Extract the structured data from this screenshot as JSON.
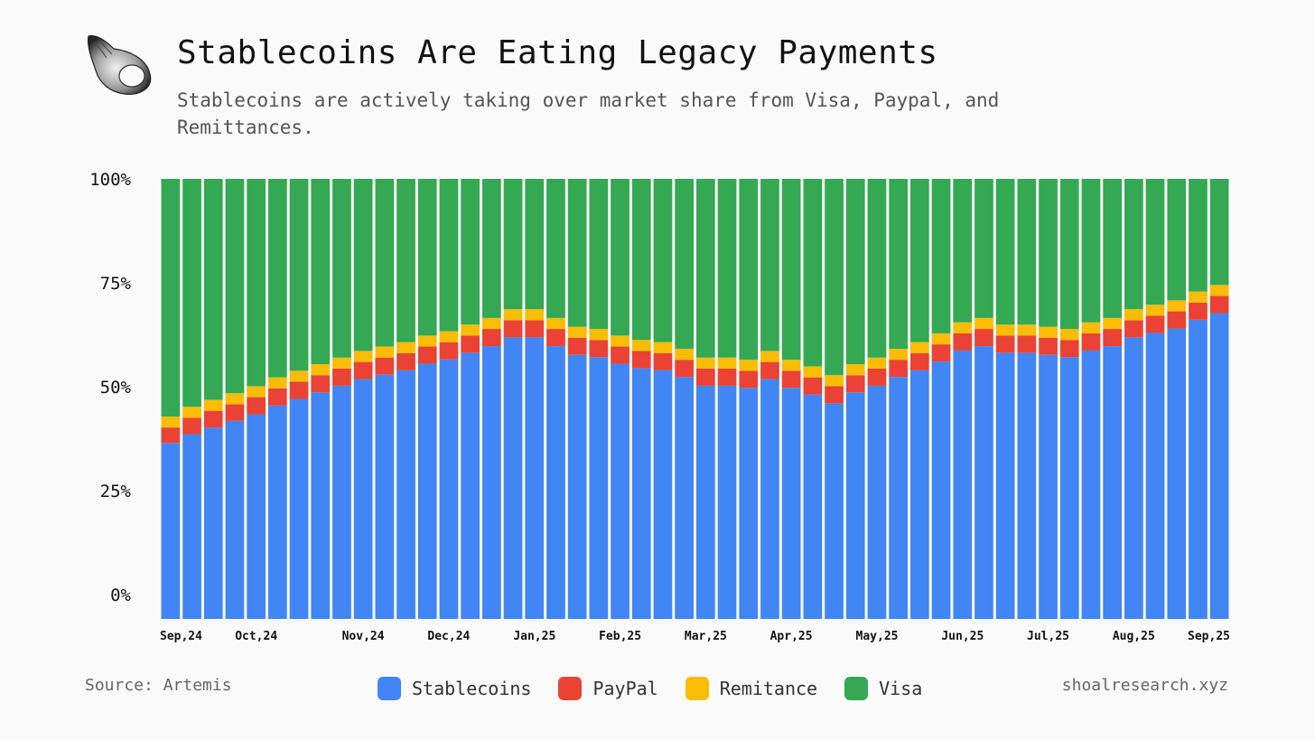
{
  "header": {
    "title": "Stablecoins Are Eating Legacy Payments",
    "subtitle": "Stablecoins are actively taking over market share from Visa, Paypal, and Remittances."
  },
  "footer": {
    "source": "Source: Artemis",
    "site": "shoalresearch.xyz"
  },
  "logo": {
    "icon": "seashell-icon"
  },
  "chart_data": {
    "type": "bar",
    "stacked": true,
    "title": "Stablecoins Are Eating Legacy Payments",
    "xlabel": "",
    "ylabel": "",
    "ylim": [
      0,
      100
    ],
    "yticks": [
      0,
      25,
      50,
      75,
      100
    ],
    "ytick_labels": [
      "0%",
      "25%",
      "50%",
      "75%",
      "100%"
    ],
    "x_tick_labels": [
      {
        "index": 0,
        "label": "Sep,24"
      },
      {
        "index": 4,
        "label": "Oct,24"
      },
      {
        "index": 9,
        "label": "Nov,24"
      },
      {
        "index": 13,
        "label": "Dec,24"
      },
      {
        "index": 17,
        "label": "Jan,25"
      },
      {
        "index": 21,
        "label": "Feb,25"
      },
      {
        "index": 25,
        "label": "Mar,25"
      },
      {
        "index": 29,
        "label": "Apr,25"
      },
      {
        "index": 33,
        "label": "May,25"
      },
      {
        "index": 37,
        "label": "Jun,25"
      },
      {
        "index": 41,
        "label": "Jul,25"
      },
      {
        "index": 45,
        "label": "Aug,25"
      },
      {
        "index": 49,
        "label": "Sep,25"
      }
    ],
    "legend_position": "bottom",
    "grid": false,
    "series": [
      {
        "name": "Stablecoins",
        "color": "#4285f4",
        "values": [
          40,
          42,
          43.5,
          45,
          46.5,
          48.5,
          50,
          51.5,
          53,
          54.5,
          55.5,
          56.5,
          58,
          59,
          60.5,
          62,
          64,
          64,
          62,
          60,
          59.5,
          58,
          57,
          56.5,
          55,
          53,
          53,
          52.5,
          54.5,
          52.5,
          51,
          49,
          51.5,
          53,
          55,
          56.5,
          58.5,
          61,
          62,
          60.5,
          60.5,
          60,
          59.5,
          61,
          62,
          64,
          65,
          66,
          68,
          69.5
        ]
      },
      {
        "name": "PayPal",
        "color": "#ea4335",
        "values": [
          3.5,
          3.7,
          3.8,
          3.8,
          3.9,
          3.9,
          3.9,
          3.9,
          3.9,
          3.9,
          3.9,
          3.9,
          3.9,
          3.9,
          3.9,
          3.9,
          3.9,
          3.9,
          3.9,
          3.9,
          3.9,
          3.9,
          3.9,
          3.9,
          3.9,
          3.9,
          3.9,
          3.9,
          3.9,
          3.9,
          3.9,
          3.9,
          3.9,
          3.9,
          3.9,
          3.9,
          3.9,
          3.9,
          3.9,
          3.9,
          3.9,
          3.9,
          3.9,
          3.9,
          3.9,
          3.9,
          3.9,
          3.9,
          3.9,
          3.9
        ]
      },
      {
        "name": "Remitance",
        "color": "#fbbc04",
        "values": [
          2.5,
          2.5,
          2.5,
          2.5,
          2.5,
          2.5,
          2.5,
          2.5,
          2.5,
          2.5,
          2.5,
          2.5,
          2.5,
          2.5,
          2.5,
          2.5,
          2.5,
          2.5,
          2.5,
          2.5,
          2.5,
          2.5,
          2.5,
          2.5,
          2.5,
          2.5,
          2.5,
          2.5,
          2.5,
          2.5,
          2.5,
          2.5,
          2.5,
          2.5,
          2.5,
          2.5,
          2.5,
          2.5,
          2.5,
          2.5,
          2.5,
          2.5,
          2.5,
          2.5,
          2.5,
          2.5,
          2.5,
          2.5,
          2.5,
          2.5
        ]
      },
      {
        "name": "Visa",
        "color": "#34a853",
        "values": [
          54,
          51.8,
          50.2,
          48.7,
          47.1,
          45.1,
          43.6,
          42.1,
          40.6,
          39.1,
          38.1,
          37.1,
          35.6,
          34.6,
          33.1,
          31.6,
          29.6,
          29.6,
          31.6,
          33.6,
          34.1,
          35.6,
          36.6,
          37.1,
          38.6,
          40.6,
          40.6,
          41.1,
          39.1,
          41.1,
          42.6,
          44.6,
          42.1,
          40.6,
          38.6,
          37.1,
          35.1,
          32.6,
          31.6,
          33.1,
          33.1,
          33.6,
          34.1,
          32.6,
          31.6,
          29.6,
          28.6,
          27.6,
          25.6,
          24.1
        ]
      }
    ]
  }
}
